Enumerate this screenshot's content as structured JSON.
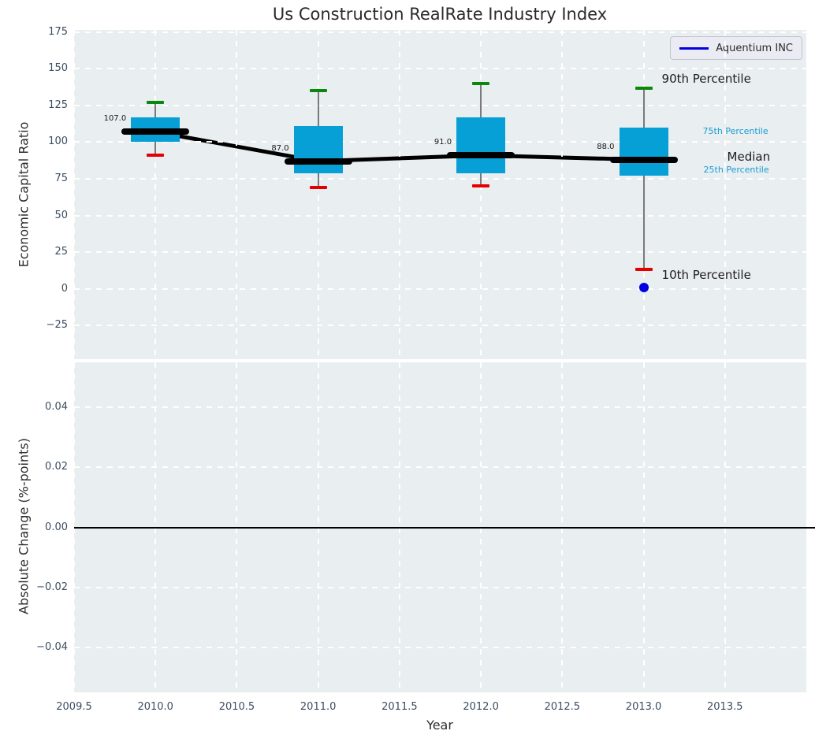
{
  "title": "Us Construction RealRate Industry Index",
  "legend": {
    "label": "Aquentium INC",
    "line_color": "#0000e0"
  },
  "colors": {
    "axes_background": "#e9eef0",
    "grid": "#ffffff",
    "box_fill": "#069fd6",
    "median_line": "#000000",
    "whisker": "#7a7a7a",
    "cap_90th": "#0b870b",
    "cap_10th": "#e50000",
    "company_point": "#0000e0",
    "tick_label": "#3d4e63",
    "annotation_accent": "#1b9cd3"
  },
  "chart_data": [
    {
      "type": "boxplot",
      "title": "Us Construction RealRate Industry Index",
      "xlabel": "Year",
      "ylabel": "Economic Capital Ratio",
      "xlim": [
        2009.5,
        2014.0
      ],
      "ylim": [
        -48,
        176.5
      ],
      "grid": "white dashed, on",
      "legend_position": "upper right",
      "xtick_values": [
        2009.5,
        2010.0,
        2010.5,
        2011.0,
        2011.5,
        2012.0,
        2012.5,
        2013.0,
        2013.5
      ],
      "xtick_labels": [
        "2009.5",
        "2010.0",
        "2010.5",
        "2011.0",
        "2011.5",
        "2012.0",
        "2012.5",
        "2013.0",
        "2013.5"
      ],
      "ytick_values": [
        175,
        150,
        125,
        100,
        75,
        50,
        25,
        0,
        -25
      ],
      "ytick_labels": [
        "175",
        "150",
        "125",
        "100",
        "75",
        "50",
        "25",
        "0",
        "−25"
      ],
      "series": {
        "years": [
          2010,
          2011,
          2012,
          2013
        ],
        "p90": [
          127,
          135,
          140,
          137
        ],
        "p75": [
          117,
          111,
          117,
          110
        ],
        "median": [
          107,
          87,
          91,
          88
        ],
        "p25": [
          100,
          79,
          79,
          77
        ],
        "p10": [
          91,
          69,
          70,
          13
        ],
        "median_labels": [
          "107.0",
          "87.0",
          "91.0",
          "88.0"
        ]
      },
      "trend_line": {
        "x": [
          2010,
          2011,
          2012,
          2013
        ],
        "y": [
          107,
          87,
          91,
          88
        ],
        "color": "#000000"
      },
      "company_point": {
        "name": "Aquentium INC",
        "year": 2013,
        "value": 1
      },
      "annotations": [
        {
          "text": "90th Percentile",
          "emphasis": "large"
        },
        {
          "text": "75th Percentile",
          "emphasis": "small"
        },
        {
          "text": "Median",
          "emphasis": "large"
        },
        {
          "text": "25th Percentile",
          "emphasis": "small"
        },
        {
          "text": "10th Percentile",
          "emphasis": "large"
        }
      ]
    },
    {
      "type": "line",
      "xlabel": "Year",
      "ylabel": "Absolute Change (%-points)",
      "xlim": [
        2009.5,
        2014.0
      ],
      "ylim": [
        -0.055,
        0.055
      ],
      "grid": "white dashed, on",
      "xtick_values": [
        2009.5,
        2010.0,
        2010.5,
        2011.0,
        2011.5,
        2012.0,
        2012.5,
        2013.0,
        2013.5
      ],
      "xtick_labels": [
        "2009.5",
        "2010.0",
        "2010.5",
        "2011.0",
        "2011.5",
        "2012.0",
        "2012.5",
        "2013.0",
        "2013.5"
      ],
      "ytick_values": [
        0.04,
        0.02,
        0.0,
        -0.02,
        -0.04
      ],
      "ytick_labels": [
        "0.04",
        "0.02",
        "0.00",
        "−0.02",
        "−0.04"
      ],
      "zero_line": 0.0,
      "data": []
    }
  ]
}
